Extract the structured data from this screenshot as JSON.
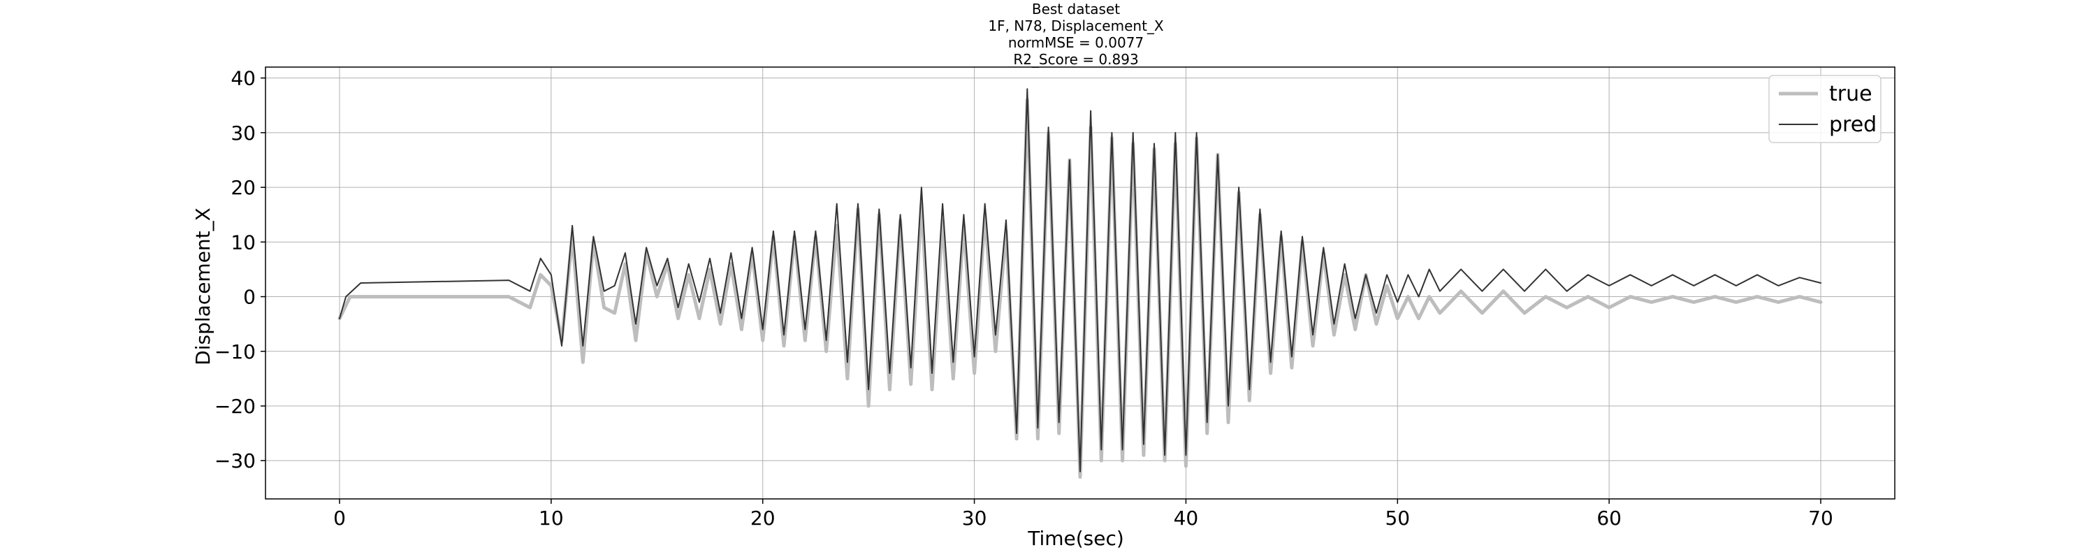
{
  "chart_data": {
    "type": "line",
    "title_lines": [
      "Best dataset",
      "1F, N78, Displacement_X",
      "normMSE = 0.0077",
      "R2_Score = 0.893"
    ],
    "xlabel": "Time(sec)",
    "ylabel": "Displacement_X",
    "xlim": [
      -3.5,
      73.5
    ],
    "ylim": [
      -37,
      42
    ],
    "xticks": [
      0,
      10,
      20,
      30,
      40,
      50,
      60,
      70
    ],
    "yticks": [
      -30,
      -20,
      -10,
      0,
      10,
      20,
      30,
      40
    ],
    "xtick_labels": [
      "0",
      "10",
      "20",
      "30",
      "40",
      "50",
      "60",
      "70"
    ],
    "ytick_labels": [
      "−30",
      "−20",
      "−10",
      "0",
      "10",
      "20",
      "30",
      "40"
    ],
    "grid": true,
    "legend": {
      "position": "top-right",
      "entries": [
        "true",
        "pred"
      ]
    },
    "series": [
      {
        "name": "true",
        "color": "#bdbdbd",
        "style": "thick",
        "points": [
          [
            0,
            -4
          ],
          [
            0.5,
            0
          ],
          [
            8,
            0
          ],
          [
            9,
            -2
          ],
          [
            9.5,
            4
          ],
          [
            10,
            2
          ],
          [
            10.5,
            -8
          ],
          [
            11,
            11
          ],
          [
            11.5,
            -12
          ],
          [
            12,
            10
          ],
          [
            12.5,
            -2
          ],
          [
            13,
            -3
          ],
          [
            13.5,
            6
          ],
          [
            14,
            -8
          ],
          [
            14.5,
            8
          ],
          [
            15,
            0
          ],
          [
            15.5,
            6
          ],
          [
            16,
            -4
          ],
          [
            16.5,
            4
          ],
          [
            17,
            -4
          ],
          [
            17.5,
            5
          ],
          [
            18,
            -5
          ],
          [
            18.5,
            6
          ],
          [
            19,
            -6
          ],
          [
            19.5,
            8
          ],
          [
            20,
            -8
          ],
          [
            20.5,
            11
          ],
          [
            21,
            -9
          ],
          [
            21.5,
            11
          ],
          [
            22,
            -8
          ],
          [
            22.5,
            11
          ],
          [
            23,
            -10
          ],
          [
            23.5,
            13
          ],
          [
            24,
            -15
          ],
          [
            24.5,
            16
          ],
          [
            25,
            -20
          ],
          [
            25.5,
            15
          ],
          [
            26,
            -17
          ],
          [
            26.5,
            14
          ],
          [
            27,
            -16
          ],
          [
            27.5,
            17
          ],
          [
            28,
            -17
          ],
          [
            28.5,
            14
          ],
          [
            29,
            -15
          ],
          [
            29.5,
            13
          ],
          [
            30,
            -14
          ],
          [
            30.5,
            15
          ],
          [
            31,
            -10
          ],
          [
            31.5,
            12
          ],
          [
            32,
            -26
          ],
          [
            32.5,
            36
          ],
          [
            33,
            -26
          ],
          [
            33.5,
            30
          ],
          [
            34,
            -25
          ],
          [
            34.5,
            25
          ],
          [
            35,
            -33
          ],
          [
            35.5,
            31
          ],
          [
            36,
            -30
          ],
          [
            36.5,
            29
          ],
          [
            37,
            -30
          ],
          [
            37.5,
            28
          ],
          [
            38,
            -29
          ],
          [
            38.5,
            27
          ],
          [
            39,
            -30
          ],
          [
            39.5,
            28
          ],
          [
            40,
            -31
          ],
          [
            40.5,
            29
          ],
          [
            41,
            -25
          ],
          [
            41.5,
            26
          ],
          [
            42,
            -23
          ],
          [
            42.5,
            19
          ],
          [
            43,
            -19
          ],
          [
            43.5,
            15
          ],
          [
            44,
            -14
          ],
          [
            44.5,
            11
          ],
          [
            45,
            -13
          ],
          [
            45.5,
            10
          ],
          [
            46,
            -9
          ],
          [
            46.5,
            8
          ],
          [
            47,
            -7
          ],
          [
            47.5,
            4
          ],
          [
            48,
            -6
          ],
          [
            48.5,
            4
          ],
          [
            49,
            -5
          ],
          [
            49.5,
            2
          ],
          [
            50,
            -4
          ],
          [
            50.5,
            0
          ],
          [
            51,
            -4
          ],
          [
            51.5,
            0
          ],
          [
            52,
            -3
          ],
          [
            53,
            1
          ],
          [
            54,
            -3
          ],
          [
            55,
            1
          ],
          [
            56,
            -3
          ],
          [
            57,
            0
          ],
          [
            58,
            -2
          ],
          [
            59,
            0
          ],
          [
            60,
            -2
          ],
          [
            61,
            0
          ],
          [
            62,
            -1
          ],
          [
            63,
            0
          ],
          [
            64,
            -1
          ],
          [
            65,
            0
          ],
          [
            66,
            -1
          ],
          [
            67,
            0
          ],
          [
            68,
            -1
          ],
          [
            69,
            0
          ],
          [
            70,
            -1
          ]
        ]
      },
      {
        "name": "pred",
        "color": "#333333",
        "style": "thin",
        "points": [
          [
            0,
            -4
          ],
          [
            0.3,
            0
          ],
          [
            1,
            2.5
          ],
          [
            8,
            3
          ],
          [
            9,
            1
          ],
          [
            9.5,
            7
          ],
          [
            10,
            4
          ],
          [
            10.5,
            -9
          ],
          [
            11,
            13
          ],
          [
            11.5,
            -9
          ],
          [
            12,
            11
          ],
          [
            12.5,
            1
          ],
          [
            13,
            2
          ],
          [
            13.5,
            8
          ],
          [
            14,
            -5
          ],
          [
            14.5,
            9
          ],
          [
            15,
            2
          ],
          [
            15.5,
            7
          ],
          [
            16,
            -2
          ],
          [
            16.5,
            6
          ],
          [
            17,
            -1
          ],
          [
            17.5,
            7
          ],
          [
            18,
            -3
          ],
          [
            18.5,
            8
          ],
          [
            19,
            -4
          ],
          [
            19.5,
            9
          ],
          [
            20,
            -6
          ],
          [
            20.5,
            12
          ],
          [
            21,
            -7
          ],
          [
            21.5,
            12
          ],
          [
            22,
            -6
          ],
          [
            22.5,
            12
          ],
          [
            23,
            -8
          ],
          [
            23.5,
            17
          ],
          [
            24,
            -12
          ],
          [
            24.5,
            17
          ],
          [
            25,
            -17
          ],
          [
            25.5,
            16
          ],
          [
            26,
            -14
          ],
          [
            26.5,
            15
          ],
          [
            27,
            -13
          ],
          [
            27.5,
            20
          ],
          [
            28,
            -14
          ],
          [
            28.5,
            17
          ],
          [
            29,
            -12
          ],
          [
            29.5,
            15
          ],
          [
            30,
            -11
          ],
          [
            30.5,
            17
          ],
          [
            31,
            -7
          ],
          [
            31.5,
            14
          ],
          [
            32,
            -25
          ],
          [
            32.5,
            38
          ],
          [
            33,
            -24
          ],
          [
            33.5,
            31
          ],
          [
            34,
            -23
          ],
          [
            34.5,
            25
          ],
          [
            35,
            -32
          ],
          [
            35.5,
            34
          ],
          [
            36,
            -28
          ],
          [
            36.5,
            30
          ],
          [
            37,
            -28
          ],
          [
            37.5,
            30
          ],
          [
            38,
            -27
          ],
          [
            38.5,
            28
          ],
          [
            39,
            -29
          ],
          [
            39.5,
            30
          ],
          [
            40,
            -29
          ],
          [
            40.5,
            30
          ],
          [
            41,
            -23
          ],
          [
            41.5,
            26
          ],
          [
            42,
            -20
          ],
          [
            42.5,
            20
          ],
          [
            43,
            -17
          ],
          [
            43.5,
            16
          ],
          [
            44,
            -12
          ],
          [
            44.5,
            12
          ],
          [
            45,
            -11
          ],
          [
            45.5,
            11
          ],
          [
            46,
            -7
          ],
          [
            46.5,
            9
          ],
          [
            47,
            -5
          ],
          [
            47.5,
            6
          ],
          [
            48,
            -4
          ],
          [
            48.5,
            4
          ],
          [
            49,
            -3
          ],
          [
            49.5,
            4
          ],
          [
            50,
            -1
          ],
          [
            50.5,
            4
          ],
          [
            51,
            0
          ],
          [
            51.5,
            5
          ],
          [
            52,
            1
          ],
          [
            53,
            5
          ],
          [
            54,
            1
          ],
          [
            55,
            5
          ],
          [
            56,
            1
          ],
          [
            57,
            5
          ],
          [
            58,
            1
          ],
          [
            59,
            4
          ],
          [
            60,
            2
          ],
          [
            61,
            4
          ],
          [
            62,
            2
          ],
          [
            63,
            4
          ],
          [
            64,
            2
          ],
          [
            65,
            4
          ],
          [
            66,
            2
          ],
          [
            67,
            4
          ],
          [
            68,
            2
          ],
          [
            69,
            3.5
          ],
          [
            70,
            2.5
          ]
        ]
      }
    ]
  }
}
